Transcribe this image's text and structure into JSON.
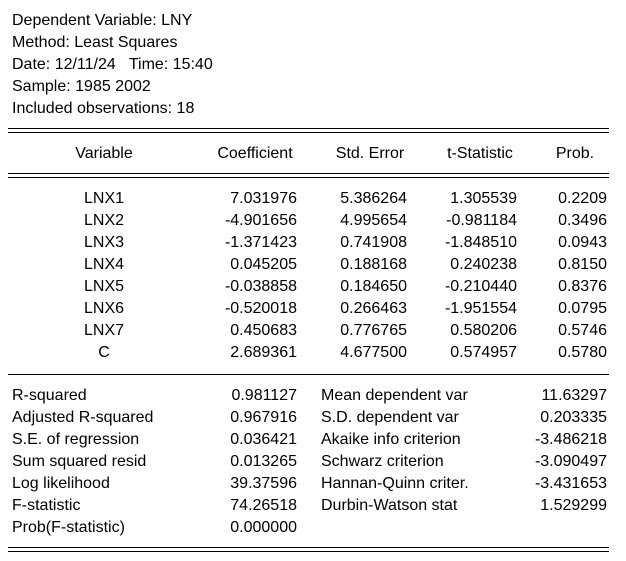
{
  "header": {
    "dependent_variable": "Dependent Variable: LNY",
    "method": "Method: Least Squares",
    "date_time": "Date: 12/11/24   Time: 15:40",
    "sample": "Sample: 1985 2002",
    "included_observations": "Included observations: 18"
  },
  "coef_table": {
    "columns": [
      "Variable",
      "Coefficient",
      "Std. Error",
      "t-Statistic",
      "Prob."
    ],
    "rows": [
      [
        "LNX1",
        "7.031976",
        "5.386264",
        "1.305539",
        "0.2209"
      ],
      [
        "LNX2",
        "-4.901656",
        "4.995654",
        "-0.981184",
        "0.3496"
      ],
      [
        "LNX3",
        "-1.371423",
        "0.741908",
        "-1.848510",
        "0.0943"
      ],
      [
        "LNX4",
        "0.045205",
        "0.188168",
        "0.240238",
        "0.8150"
      ],
      [
        "LNX5",
        "-0.038858",
        "0.184650",
        "-0.210440",
        "0.8376"
      ],
      [
        "LNX6",
        "-0.520018",
        "0.266463",
        "-1.951554",
        "0.0795"
      ],
      [
        "LNX7",
        "0.450683",
        "0.776765",
        "0.580206",
        "0.5746"
      ],
      [
        "C",
        "2.689361",
        "4.677500",
        "0.574957",
        "0.5780"
      ]
    ]
  },
  "stats": {
    "left": [
      [
        "R-squared",
        "0.981127"
      ],
      [
        "Adjusted R-squared",
        "0.967916"
      ],
      [
        "S.E. of regression",
        "0.036421"
      ],
      [
        "Sum squared resid",
        "0.013265"
      ],
      [
        "Log likelihood",
        "39.37596"
      ],
      [
        "F-statistic",
        "74.26518"
      ],
      [
        "Prob(F-statistic)",
        "0.000000"
      ]
    ],
    "right": [
      [
        "Mean dependent var",
        "11.63297"
      ],
      [
        "S.D. dependent var",
        "0.203335"
      ],
      [
        "Akaike info criterion",
        "-3.486218"
      ],
      [
        "Schwarz criterion",
        "-3.090497"
      ],
      [
        "Hannan-Quinn criter.",
        "-3.431653"
      ],
      [
        "Durbin-Watson stat",
        "1.529299"
      ]
    ]
  }
}
